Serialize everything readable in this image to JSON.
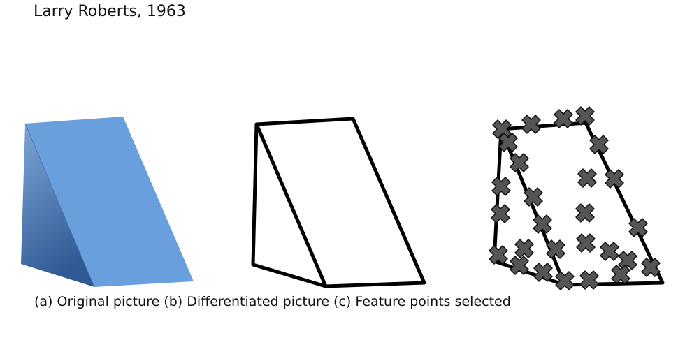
{
  "title": "Larry Roberts, 1963",
  "caption": "(a) Original picture (b) Differentiated picture (c) Feature points selected",
  "colors": {
    "wedge_front": "#6a9fdd",
    "wedge_side_light": "#7fa6d8",
    "wedge_side_dark": "#2f5a94",
    "edge_line": "#000000",
    "marker_fill": "#555555",
    "marker_stroke": "#111111"
  },
  "panels": {
    "a": {
      "name": "original-picture"
    },
    "b": {
      "name": "differentiated-picture"
    },
    "c": {
      "name": "feature-points-selected",
      "marker_icon": "x-mark-icon"
    }
  }
}
